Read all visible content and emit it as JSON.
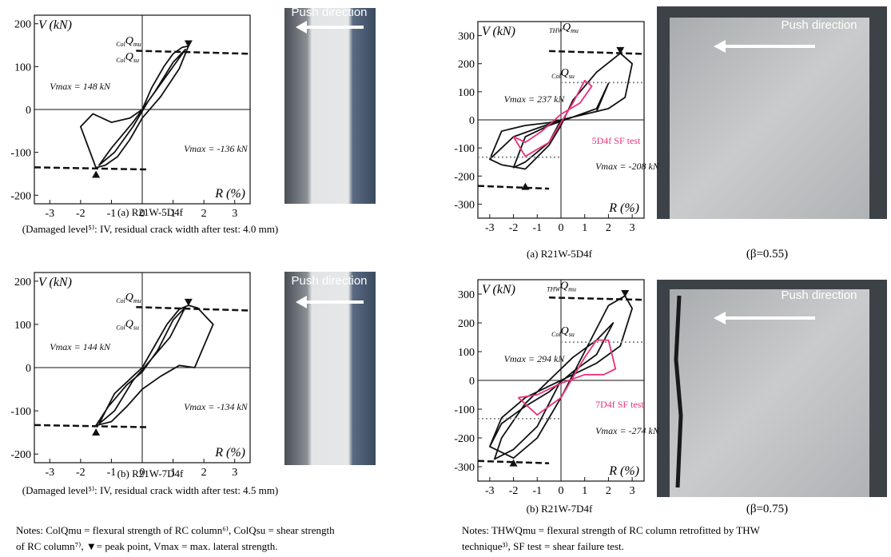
{
  "chart_data": [
    {
      "type": "line",
      "ylabel": "V (kN)",
      "xlabel": "R (%)",
      "xlim": [
        -3.5,
        3.5
      ],
      "ylim": [
        -220,
        220
      ],
      "xticks": [
        -3,
        -2,
        -1,
        0,
        1,
        2,
        3
      ],
      "yticks": [
        -200,
        -100,
        0,
        100,
        200
      ],
      "annotations": [
        {
          "pre": "Col",
          "main": "Q",
          "sub": "mu"
        },
        {
          "pre": "Col",
          "main": "Q",
          "sub": "su"
        },
        {
          "text": "Vmax = 148 kN"
        },
        {
          "text": "Vmax = -136 kN"
        }
      ],
      "series": [
        {
          "color": "#111111",
          "x": [
            0,
            0.3,
            0.7,
            1,
            1.3,
            1.5,
            1.2,
            0.6,
            0,
            -0.4,
            -0.8,
            -1.2,
            -1.5,
            -2,
            -1.6,
            -1,
            -0.4,
            0,
            0.4,
            1,
            1.4,
            0.8,
            0.2,
            -0.3,
            -0.9,
            -1.4,
            -1,
            -0.3,
            0
          ],
          "y": [
            0,
            50,
            100,
            130,
            145,
            148,
            95,
            30,
            -20,
            -70,
            -110,
            -130,
            -136,
            -40,
            -10,
            -30,
            -20,
            0,
            40,
            110,
            140,
            80,
            20,
            -40,
            -100,
            -130,
            -90,
            -30,
            0
          ]
        },
        {
          "color": "#111111",
          "dashed": true,
          "x": [
            -0.2,
            3.5,
            null,
            -3.5,
            0.2
          ],
          "y": [
            137,
            130,
            null,
            -135,
            -140
          ]
        },
        {
          "color": "#111111",
          "marker": "triangle",
          "x": [
            1.5,
            -1.5
          ],
          "y": [
            152,
            -150
          ]
        }
      ]
    },
    {
      "type": "line",
      "ylabel": "V (kN)",
      "xlabel": "R (%)",
      "xlim": [
        -3.5,
        3.5
      ],
      "ylim": [
        -220,
        220
      ],
      "xticks": [
        -3,
        -2,
        -1,
        0,
        1,
        2,
        3
      ],
      "yticks": [
        -200,
        -100,
        0,
        100,
        200
      ],
      "annotations": [
        {
          "pre": "Col",
          "main": "Q",
          "sub": "mu"
        },
        {
          "pre": "Col",
          "main": "Q",
          "sub": "su"
        },
        {
          "text": "Vmax = 144 kN"
        },
        {
          "text": "Vmax = -134 kN"
        }
      ],
      "series": [
        {
          "color": "#111111",
          "x": [
            0,
            0.4,
            0.8,
            1.2,
            1.5,
            1.8,
            2.3,
            1.7,
            1.2,
            0.6,
            0,
            -0.5,
            -1,
            -1.5,
            -1.1,
            -0.5,
            0,
            0.5,
            1,
            1.4,
            0.9,
            0.3,
            -0.3,
            -0.9,
            -1.4,
            -0.9,
            -0.3,
            0
          ],
          "y": [
            0,
            50,
            100,
            135,
            144,
            138,
            100,
            0,
            5,
            -20,
            -50,
            -90,
            -125,
            -134,
            -90,
            -40,
            -10,
            40,
            110,
            140,
            70,
            20,
            -30,
            -100,
            -130,
            -60,
            -20,
            0
          ]
        },
        {
          "color": "#111111",
          "dashed": true,
          "x": [
            -0.2,
            3.5,
            null,
            -3.5,
            0.2
          ],
          "y": [
            140,
            132,
            null,
            -133,
            -138
          ]
        },
        {
          "color": "#111111",
          "marker": "triangle",
          "x": [
            1.5,
            -1.5
          ],
          "y": [
            150,
            -148
          ]
        }
      ]
    },
    {
      "type": "line",
      "ylabel": "V (kN)",
      "xlabel": "R (%)",
      "xlim": [
        -3.5,
        3.5
      ],
      "ylim": [
        -350,
        350
      ],
      "xticks": [
        -3,
        -2,
        -1,
        0,
        1,
        2,
        3
      ],
      "yticks": [
        -300,
        -200,
        -100,
        0,
        100,
        200,
        300
      ],
      "annotations": [
        {
          "pre": "THW",
          "main": "Q",
          "sub": "mu"
        },
        {
          "pre": "Col",
          "main": "Q",
          "sub": "su"
        },
        {
          "text": "Vmax = 237 kN"
        },
        {
          "text": "5D4f SF test",
          "color": "#e8307a"
        },
        {
          "text": "Vmax = -208 kN"
        }
      ],
      "series": [
        {
          "color": "#111111",
          "x": [
            -3,
            -2.5,
            -1.5,
            -0.5,
            0,
            0.5,
            1.5,
            2.5,
            3,
            2.7,
            2,
            1,
            0,
            -1,
            -2,
            -3,
            -2.5,
            -1.5,
            -0.5,
            0.5,
            1.5,
            2,
            1.5,
            0.5,
            -0.5,
            -1.5,
            -2,
            -1.5,
            -0.5,
            0
          ],
          "y": [
            -140,
            -160,
            -175,
            -90,
            -20,
            70,
            170,
            237,
            200,
            80,
            40,
            20,
            0,
            -30,
            -60,
            -140,
            -40,
            -20,
            -10,
            10,
            30,
            130,
            40,
            10,
            -20,
            -60,
            -170,
            -150,
            -80,
            0
          ]
        },
        {
          "color": "#e8307a",
          "x": [
            -2,
            -1.5,
            -0.5,
            0.5,
            1,
            1.3,
            0.8,
            0,
            -0.8,
            -1.5,
            -2
          ],
          "y": [
            -60,
            -130,
            -80,
            60,
            140,
            120,
            60,
            20,
            -40,
            -80,
            -60
          ]
        },
        {
          "color": "#111111",
          "dashed": true,
          "x": [
            -0.5,
            3.5,
            null,
            -3.5,
            -0.5
          ],
          "y": [
            245,
            235,
            null,
            -235,
            -245
          ]
        },
        {
          "color": "#888888",
          "dotted": true,
          "x": [
            0,
            3.5,
            null,
            -3.5,
            0
          ],
          "y": [
            133,
            133,
            null,
            -133,
            -133
          ]
        },
        {
          "color": "#111111",
          "marker": "triangle",
          "x": [
            2.5,
            -1.5
          ],
          "y": [
            245,
            -235
          ]
        }
      ]
    },
    {
      "type": "line",
      "ylabel": "V (kN)",
      "xlabel": "R (%)",
      "xlim": [
        -3.5,
        3.5
      ],
      "ylim": [
        -350,
        350
      ],
      "xticks": [
        -3,
        -2,
        -1,
        0,
        1,
        2,
        3
      ],
      "yticks": [
        -300,
        -200,
        -100,
        0,
        100,
        200,
        300
      ],
      "annotations": [
        {
          "pre": "THW",
          "main": "Q",
          "sub": "mu"
        },
        {
          "pre": "Col",
          "main": "Q",
          "sub": "su"
        },
        {
          "text": "Vmax = 294 kN"
        },
        {
          "text": "7D4f SF test",
          "color": "#e8307a"
        },
        {
          "text": "Vmax = -274 kN"
        }
      ],
      "series": [
        {
          "color": "#111111",
          "x": [
            -3,
            -2,
            -1,
            0,
            1,
            2,
            2.7,
            3,
            2.5,
            1.5,
            0.5,
            -0.5,
            -1.5,
            -2.5,
            -3,
            -2.5,
            -1.5,
            -0.5,
            0.5,
            1.5,
            2.2,
            1.5,
            0.5,
            -0.5,
            -1.5,
            -2.5,
            -2.8,
            -2,
            -1,
            0
          ],
          "y": [
            -230,
            -270,
            -200,
            -60,
            100,
            260,
            294,
            250,
            120,
            60,
            20,
            -20,
            -60,
            -130,
            -230,
            -150,
            -90,
            -40,
            30,
            90,
            200,
            140,
            80,
            0,
            -80,
            -200,
            -274,
            -240,
            -160,
            0
          ]
        },
        {
          "color": "#e8307a",
          "x": [
            -1.8,
            -1,
            0,
            1,
            1.5,
            2,
            2.3,
            1.8,
            1,
            0,
            -1,
            -1.8
          ],
          "y": [
            -60,
            -120,
            -60,
            80,
            140,
            140,
            40,
            20,
            20,
            -10,
            -50,
            -60
          ]
        },
        {
          "color": "#111111",
          "dashed": true,
          "x": [
            -0.5,
            3.5,
            null,
            -3.5,
            -0.5
          ],
          "y": [
            288,
            280,
            null,
            -280,
            -288
          ]
        },
        {
          "color": "#888888",
          "dotted": true,
          "x": [
            0,
            3.5,
            null,
            -3.5,
            0
          ],
          "y": [
            133,
            133,
            null,
            -133,
            -133
          ]
        },
        {
          "color": "#111111",
          "marker": "triangle",
          "x": [
            2.7,
            -2
          ],
          "y": [
            300,
            -285
          ]
        }
      ]
    }
  ],
  "figure": {
    "push_label": [
      "Push direction",
      "Push direction",
      "Push direction",
      "Push direction"
    ],
    "captions": [
      "(a) R21W-5D4f",
      "(Damaged level⁵⁾: IV, residual crack width after test: 4.0 mm)",
      "(b) R21W-7D4f",
      "(Damaged level⁵⁾: IV, residual crack width after test: 4.5 mm)",
      "(a) R21W-5D4f",
      "(β=0.55)",
      "(b) R21W-7D4f",
      "(β=0.75)"
    ],
    "notes": [
      "Notes: ColQmu = flexural strength of RC column⁶⁾, ColQsu = shear strength",
      "of RC column⁷⁾,  ▼= peak point, Vmax = max. lateral strength.",
      "Notes: THWQmu = flexural strength of RC column retrofitted by THW",
      "technique³⁾, SF test = shear failure test."
    ]
  }
}
